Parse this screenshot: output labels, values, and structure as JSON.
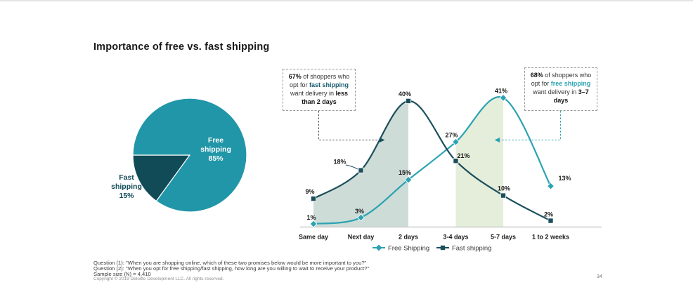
{
  "page": {
    "title": "Importance of free vs. fast shipping",
    "page_number": "34"
  },
  "callout_left": {
    "pct": "67%",
    "t1": " of shoppers who opt for ",
    "highlight": "fast shipping",
    "t2": " want delivery in ",
    "emphasis": "less than 2 days"
  },
  "callout_right": {
    "pct": "68%",
    "t1": " of shoppers who opt for ",
    "highlight": "free shipping",
    "t2": " want delivery in ",
    "emphasis": "3–7 days"
  },
  "footer": {
    "question1": "Question (1): \"When you are shopping online, which of these two promises below would be more important to you?\"",
    "question2": "Question (2): \"When you opt for free shipping/fast shipping, how long are you willing to wait to receive your product?\"",
    "sample_size": "Sample size (N) = 4,410",
    "copyright": "Copyright © 2019 Deloitte Development LLC. All rights reserved."
  },
  "colors": {
    "teal": "#2196A8",
    "dark_teal": "#114B58",
    "line_teal": "#2BA3B2",
    "line_dark": "#1C4F5C",
    "shade_left": "#CEDCD7",
    "shade_right": "#E5EEDA",
    "axis": "#CDCDCD",
    "label_dark": "#1A1A1A"
  },
  "chart_data": [
    {
      "type": "pie",
      "slices": [
        {
          "label": "Fast shipping",
          "value": 15,
          "pct_label": "15%",
          "color": "#114B58"
        },
        {
          "label": "Free shipping",
          "value": 85,
          "pct_label": "85%",
          "color": "#2196A8"
        }
      ],
      "start_angle_deg": 126
    },
    {
      "type": "line",
      "categories": [
        "Same day",
        "Next day",
        "2 days",
        "3-4 days",
        "5-7 days",
        "1 to 2 weeks"
      ],
      "series": [
        {
          "name": "Free Shipping",
          "marker": "diamond",
          "color": "#2BA3B2",
          "values": [
            1,
            3,
            15,
            27,
            41,
            13
          ]
        },
        {
          "name": "Fast shipping",
          "marker": "square",
          "color": "#1C4F5C",
          "values": [
            9,
            18,
            40,
            21,
            10,
            2
          ]
        }
      ],
      "value_suffix": "%",
      "ylim": [
        0,
        45
      ],
      "grid": false,
      "legend_position": "bottom",
      "shaded_regions": [
        {
          "series": "Fast shipping",
          "from": "Same day",
          "to": "2 days",
          "color": "#CEDCD7"
        },
        {
          "series": "Free Shipping",
          "from": "3-4 days",
          "to": "5-7 days",
          "color": "#E5EEDA"
        }
      ]
    }
  ]
}
